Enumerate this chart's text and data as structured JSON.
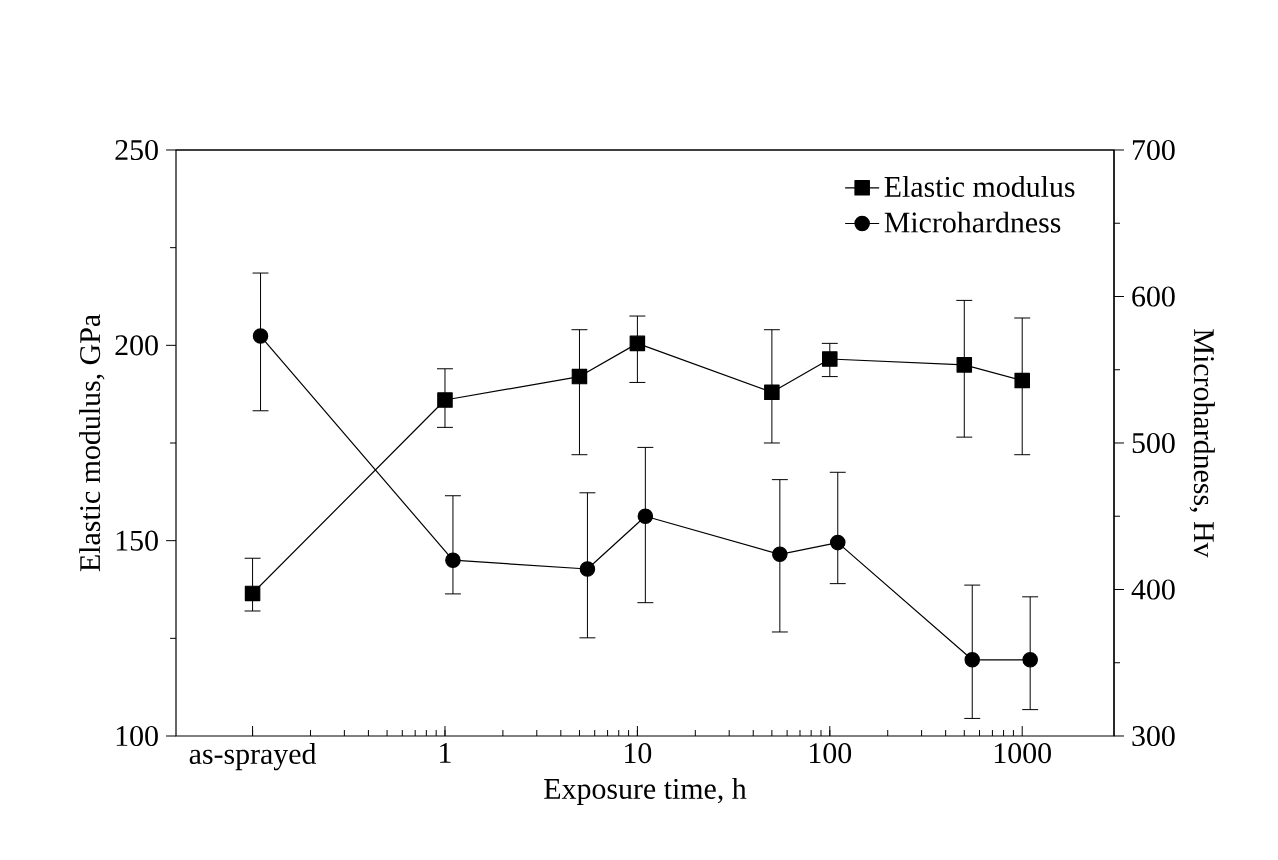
{
  "chart_data": {
    "type": "line",
    "xlabel": "Exposure time, h",
    "ylabel": "Elastic modulus, GPa",
    "y2label": "Microhardness, Hv",
    "log": "x",
    "xlim": [
      0.04,
      3000
    ],
    "xticks": [
      {
        "value": 0.1,
        "label": "as-sprayed"
      },
      1,
      10,
      100,
      1000
    ],
    "ylim": [
      100,
      250
    ],
    "yticks": [
      100,
      150,
      200,
      250
    ],
    "y2lim": [
      300,
      700
    ],
    "y2ticks": [
      300,
      400,
      500,
      600,
      700
    ],
    "legend": "top right",
    "series": [
      {
        "name": "Elastic modulus",
        "color": "#000000",
        "marker": "square",
        "x": [
          0.1,
          1,
          5,
          10,
          50,
          100,
          500,
          1000
        ],
        "values": [
          136.5,
          186,
          192,
          200.5,
          188,
          196.5,
          195,
          191
        ],
        "errors": [
          [
            132,
            145.5
          ],
          [
            179,
            194
          ],
          [
            172,
            204
          ],
          [
            190.5,
            207.5
          ],
          [
            175,
            204
          ],
          [
            192,
            200.5
          ],
          [
            176.5,
            211.5
          ],
          [
            172,
            207
          ]
        ]
      },
      {
        "name": "Microhardness",
        "color": "#000000",
        "marker": "circle",
        "axis": "y2",
        "x": [
          0.11,
          1.1,
          5.5,
          11,
          55,
          110,
          550,
          1100
        ],
        "values": [
          573,
          420,
          414,
          450,
          424,
          432,
          352,
          352
        ],
        "errors": [
          [
            522,
            616
          ],
          [
            397,
            464
          ],
          [
            367,
            466
          ],
          [
            391,
            497
          ],
          [
            371,
            475
          ],
          [
            404,
            480
          ],
          [
            312,
            403
          ],
          [
            318,
            395
          ]
        ]
      }
    ]
  }
}
